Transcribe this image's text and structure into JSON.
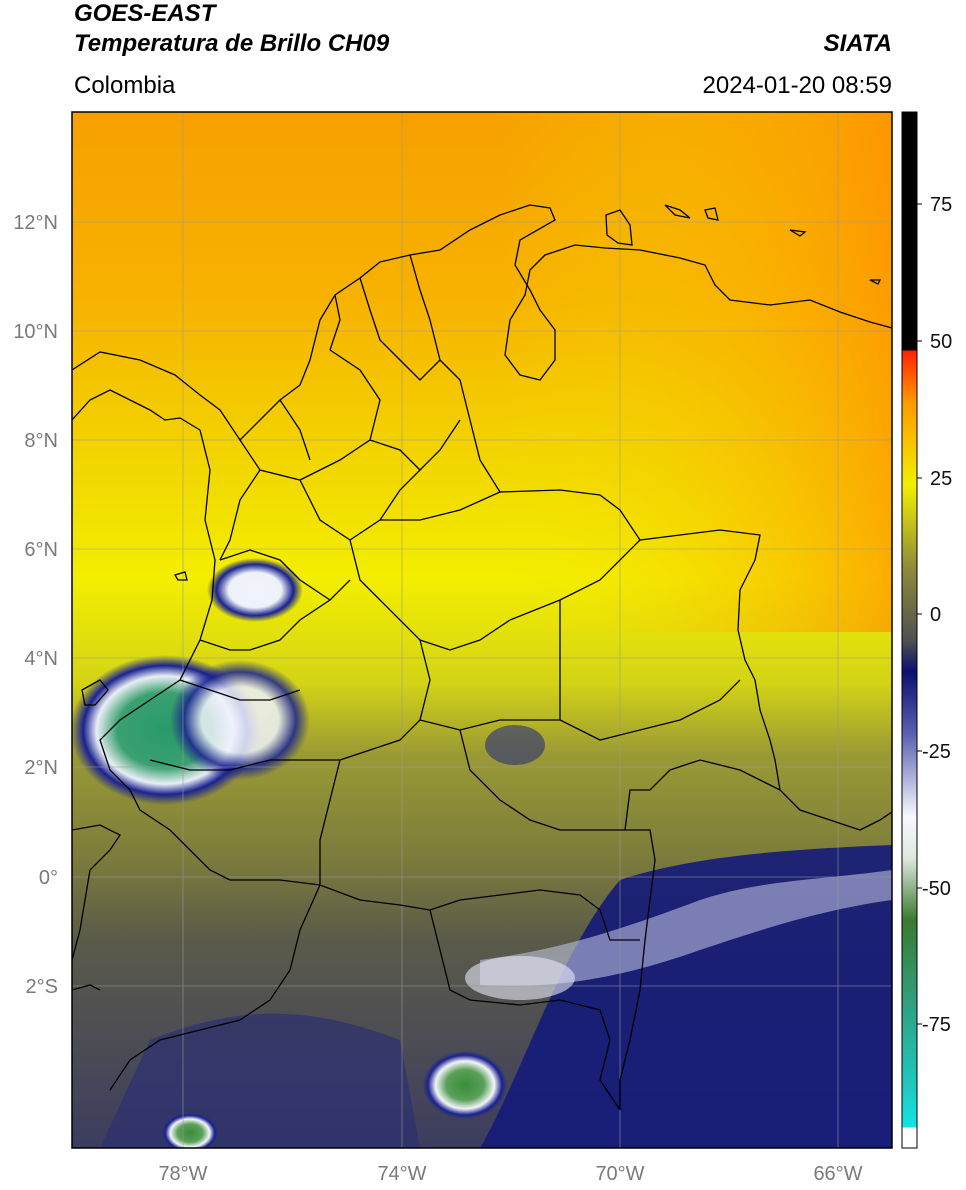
{
  "header": {
    "satellite": "GOES-EAST",
    "product": "Temperatura de Brillo CH09",
    "region": "Colombia",
    "org": "SIATA",
    "datetime": "2024-01-20 08:59"
  },
  "map": {
    "lat_labels": [
      "12°N",
      "10°N",
      "8°N",
      "6°N",
      "4°N",
      "2°N",
      "0°",
      "2°S"
    ],
    "lon_labels": [
      "78°W",
      "74°W",
      "70°W",
      "66°W"
    ]
  },
  "colorbar": {
    "ticks": [
      "75",
      "50",
      "25",
      "0",
      "-25",
      "-50",
      "-75"
    ],
    "colors": {
      "hot": "#000000",
      "red": "#ff2000",
      "orange": "#ff9a00",
      "yellow": "#f2f000",
      "olive": "#8e8c3a",
      "gray": "#555555",
      "navy": "#0a1070",
      "white": "#f4f4ff",
      "green": "#3a9a3a",
      "teal": "#2aa08a",
      "cyan": "#20e0e0"
    }
  }
}
